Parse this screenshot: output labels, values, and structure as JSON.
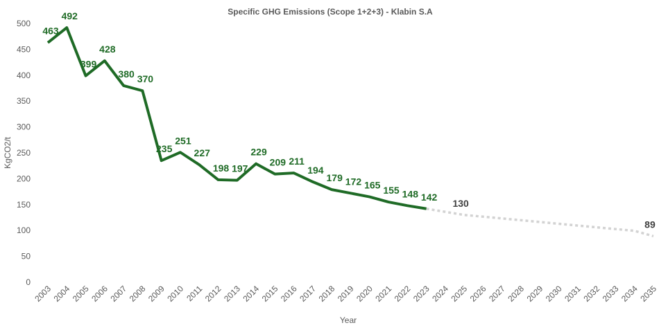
{
  "chart_data": {
    "type": "line",
    "title": "Specific GHG Emissions (Scope 1+2+3) - Klabin S.A",
    "xlabel": "Year",
    "ylabel": "KgCO2/t",
    "ylim": [
      0,
      500
    ],
    "y_ticks": [
      0,
      50,
      100,
      150,
      200,
      250,
      300,
      350,
      400,
      450,
      500
    ],
    "categories": [
      "2003",
      "2004",
      "2005",
      "2006",
      "2007",
      "2008",
      "2009",
      "2010",
      "2011",
      "2012",
      "2013",
      "2014",
      "2015",
      "2016",
      "2017",
      "2018",
      "2019",
      "2020",
      "2021",
      "2022",
      "2023",
      "2024",
      "2025",
      "2026",
      "2027",
      "2028",
      "2029",
      "2030",
      "2031",
      "2032",
      "2033",
      "2034",
      "2035"
    ],
    "grid": false,
    "legend": "none",
    "series": [
      {
        "style": "solid",
        "color": "#1f6b26",
        "x": [
          "2003",
          "2004",
          "2005",
          "2006",
          "2007",
          "2008",
          "2009",
          "2010",
          "2011",
          "2012",
          "2013",
          "2014",
          "2015",
          "2016",
          "2017",
          "2018",
          "2019",
          "2020",
          "2021",
          "2022",
          "2023"
        ],
        "values": [
          463,
          492,
          399,
          428,
          380,
          370,
          235,
          251,
          227,
          198,
          197,
          229,
          209,
          211,
          194,
          179,
          172,
          165,
          155,
          148,
          142
        ]
      },
      {
        "style": "dotted",
        "color": "#d3d3d3",
        "x": [
          "2023",
          "2024",
          "2025",
          "2026",
          "2027",
          "2028",
          "2029",
          "2030",
          "2031",
          "2032",
          "2033",
          "2034",
          "2035"
        ],
        "values": [
          142,
          136,
          130,
          126.6,
          123.2,
          119.8,
          116.3,
          112.9,
          109.5,
          106.1,
          102.7,
          99.3,
          89
        ],
        "labels": [
          {
            "x": "2025",
            "text": "130"
          },
          {
            "x": "2035",
            "text": "89"
          }
        ],
        "label_color": "#404040"
      }
    ]
  }
}
